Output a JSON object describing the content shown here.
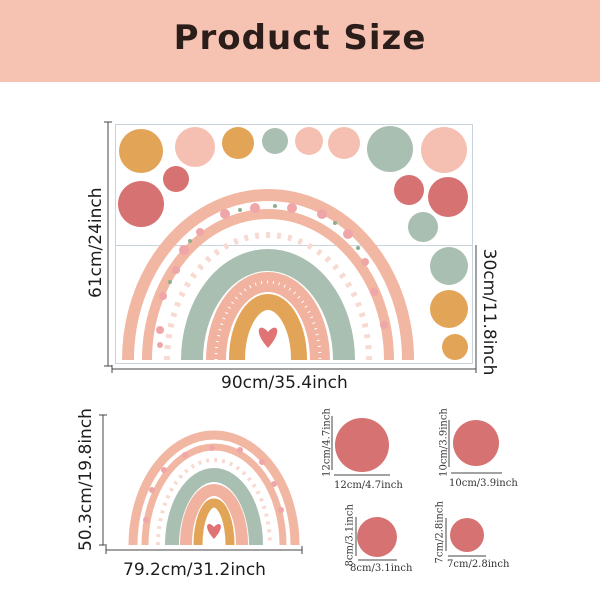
{
  "banner": {
    "title": "Product Size"
  },
  "dimensions": {
    "main_width": "90cm/35.4inch",
    "main_height": "61cm/24inch",
    "main_half_height": "30cm/11.8inch",
    "small_width": "79.2cm/31.2inch",
    "small_height": "50.3cm/19.8inch",
    "circle_1_width": "12cm/4.7inch",
    "circle_1_height": "12cm/4.7inch",
    "circle_2_width": "10cm/3.9inch",
    "circle_2_height": "10cm/3.9inch",
    "circle_3_width": "8cm/3.1inch",
    "circle_3_height": "8cm/3.1inch",
    "circle_4_width": "7cm/2.8inch",
    "circle_4_height": "7cm/2.8inch"
  },
  "colors": {
    "banner": "#f6c3b3",
    "peach": "#f1b3a0",
    "mustard": "#e2a457",
    "sage": "#a9bfb1",
    "rose": "#d77272",
    "light_pink": "#f5c0b1",
    "heart": "#e07474"
  }
}
